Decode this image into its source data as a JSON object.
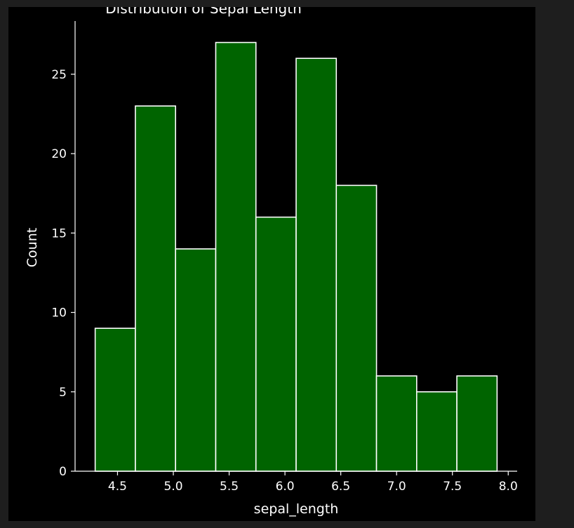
{
  "chart_data": {
    "type": "bar",
    "title": "Distribution of Sepal Length",
    "xlabel": "sepal_length",
    "ylabel": "Count",
    "bins": [
      {
        "x0": 4.3,
        "x1": 4.66,
        "count": 9
      },
      {
        "x0": 4.66,
        "x1": 5.02,
        "count": 23
      },
      {
        "x0": 5.02,
        "x1": 5.38,
        "count": 14
      },
      {
        "x0": 5.38,
        "x1": 5.74,
        "count": 27
      },
      {
        "x0": 5.74,
        "x1": 6.1,
        "count": 16
      },
      {
        "x0": 6.1,
        "x1": 6.46,
        "count": 26
      },
      {
        "x0": 6.46,
        "x1": 6.82,
        "count": 18
      },
      {
        "x0": 6.82,
        "x1": 7.18,
        "count": 6
      },
      {
        "x0": 7.18,
        "x1": 7.54,
        "count": 5
      },
      {
        "x0": 7.54,
        "x1": 7.9,
        "count": 6
      }
    ],
    "xticks": [
      4.5,
      5.0,
      5.5,
      6.0,
      6.5,
      7.0,
      7.5,
      8.0
    ],
    "xtick_labels": [
      "4.5",
      "5.0",
      "5.5",
      "6.0",
      "6.5",
      "7.0",
      "7.5",
      "8.0"
    ],
    "yticks": [
      0,
      5,
      10,
      15,
      20,
      25
    ],
    "ytick_labels": [
      "0",
      "5",
      "10",
      "15",
      "20",
      "25"
    ],
    "xlim": [
      4.12,
      8.08
    ],
    "ylim": [
      0,
      28.35
    ],
    "grid": false,
    "colors": {
      "bar_fill": "#006400",
      "bar_edge": "#ffffff",
      "background": "#000000",
      "axis": "#ffffff",
      "text": "#ffffff"
    }
  }
}
